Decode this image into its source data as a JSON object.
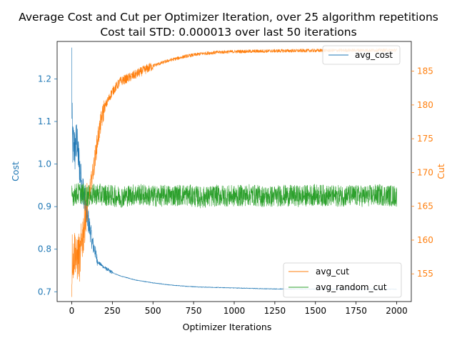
{
  "chart_data": {
    "type": "line",
    "title_line1": "Average Cost and Cut per Optimizer Iteration, over 25 algorithm repetitions",
    "title_line2": "Cost tail STD: 0.000013 over last 50 iterations",
    "xlabel": "Optimizer Iterations",
    "ylabel_left": "Cost",
    "ylabel_right": "Cut",
    "xlim": [
      -90,
      2090
    ],
    "ylim_left": [
      0.677,
      1.288
    ],
    "ylim_right": [
      150.9,
      189.4
    ],
    "x_ticks": [
      0,
      250,
      500,
      750,
      1000,
      1250,
      1500,
      1750,
      2000
    ],
    "x_tick_labels": [
      "0",
      "250",
      "500",
      "750",
      "1000",
      "1250",
      "1500",
      "1750",
      "2000"
    ],
    "left_ticks": [
      0.7,
      0.8,
      0.9,
      1.0,
      1.1,
      1.2
    ],
    "left_tick_labels": [
      "0.7",
      "0.8",
      "0.9",
      "1.0",
      "1.1",
      "1.2"
    ],
    "right_ticks": [
      155,
      160,
      165,
      170,
      175,
      180,
      185
    ],
    "right_tick_labels": [
      "155",
      "160",
      "165",
      "170",
      "175",
      "180",
      "185"
    ],
    "grid": false,
    "legend_top": {
      "placement": "top-right",
      "entries": [
        "avg_cost"
      ]
    },
    "legend_bottom": {
      "placement": "lower-right",
      "entries": [
        "avg_cut",
        "avg_random_cut"
      ]
    },
    "colors": {
      "avg_cost": "#1f77b4",
      "avg_cut": "#ff7f0e",
      "avg_random_cut": "#2ca02c",
      "left_axis": "#1f77b4",
      "right_axis": "#ff7f0e"
    },
    "series": [
      {
        "name": "avg_cost",
        "axis": "left",
        "noise": 0,
        "x": [
          0,
          1,
          5,
          10,
          20,
          30,
          40,
          50,
          60,
          70,
          80,
          90,
          100,
          110,
          120,
          130,
          140,
          150,
          160,
          175,
          200,
          250,
          300,
          400,
          500,
          600,
          700,
          800,
          1000,
          1200,
          1300,
          1500,
          1750,
          2000
        ],
        "y": [
          1.255,
          1.13,
          1.04,
          1.05,
          1.03,
          1.06,
          1.02,
          0.99,
          0.95,
          0.94,
          0.92,
          0.88,
          0.87,
          0.85,
          0.83,
          0.81,
          0.8,
          0.785,
          0.77,
          0.765,
          0.757,
          0.745,
          0.737,
          0.727,
          0.721,
          0.716,
          0.713,
          0.711,
          0.709,
          0.707,
          0.7065,
          0.7062,
          0.7061,
          0.706
        ]
      },
      {
        "name": "avg_cut",
        "axis": "right",
        "noise": 0,
        "x": [
          0,
          3,
          10,
          20,
          30,
          40,
          50,
          60,
          70,
          80,
          90,
          100,
          120,
          140,
          160,
          180,
          200,
          250,
          300,
          350,
          400,
          450,
          500,
          600,
          700,
          800,
          900,
          1000,
          1250,
          1500,
          1750,
          2000
        ],
        "y": [
          153.5,
          158.0,
          157.0,
          159.0,
          156.5,
          158.0,
          157.0,
          159.5,
          161.0,
          163.0,
          165.0,
          166.0,
          168.5,
          171.5,
          175.0,
          177.5,
          179.5,
          182.0,
          183.5,
          184.0,
          184.6,
          185.2,
          185.8,
          186.6,
          187.2,
          187.6,
          187.8,
          187.9,
          188.0,
          188.05,
          188.1,
          188.1
        ]
      },
      {
        "name": "avg_random_cut",
        "axis": "right",
        "noise": 0,
        "x": [
          0,
          50,
          100,
          150,
          200,
          300,
          400,
          500,
          600,
          700,
          800,
          900,
          1000,
          1100,
          1200,
          1300,
          1400,
          1500,
          1600,
          1700,
          1800,
          1900,
          2000
        ],
        "y": [
          166.6,
          167.0,
          166.5,
          166.8,
          166.7,
          166.4,
          166.8,
          166.5,
          166.6,
          166.7,
          166.3,
          166.6,
          166.5,
          166.7,
          166.4,
          166.6,
          166.5,
          166.7,
          166.5,
          166.6,
          166.5,
          166.7,
          166.5
        ]
      }
    ]
  }
}
